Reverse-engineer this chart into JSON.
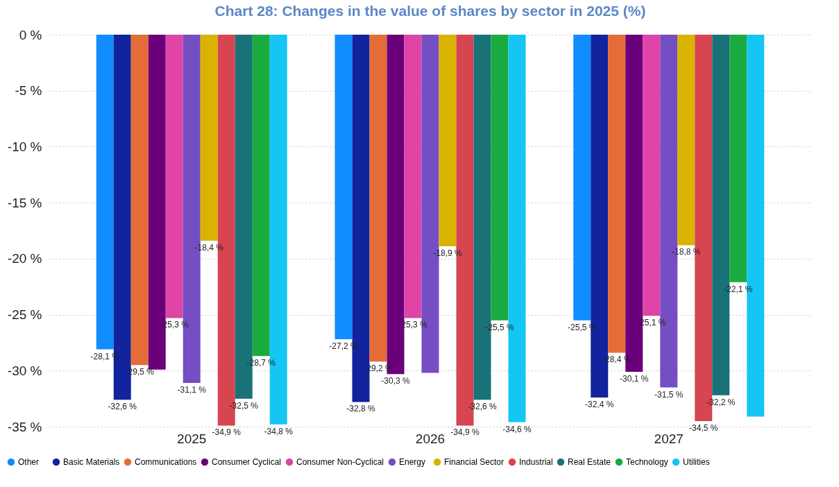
{
  "chart_data": {
    "type": "bar",
    "title": "Chart 28: Changes in the value of shares by sector in 2025 (%)",
    "categories": [
      "2025",
      "2026",
      "2027"
    ],
    "series": [
      {
        "name": "Other",
        "color": "#118dff",
        "values": [
          -28.1,
          -27.2,
          -25.5
        ],
        "value_labels": [
          "-28,1 %",
          "-27,2 %",
          "-25,5 %"
        ]
      },
      {
        "name": "Basic Materials",
        "color": "#12239e",
        "values": [
          -32.6,
          -32.8,
          -32.4
        ],
        "value_labels": [
          "-32,6 %",
          "-32,8 %",
          "-32,4 %"
        ]
      },
      {
        "name": "Communications",
        "color": "#e66c37",
        "values": [
          -29.5,
          -29.2,
          -28.4
        ],
        "value_labels": [
          "-29,5 %",
          "-29,2 %",
          "-28,4 %"
        ]
      },
      {
        "name": "Consumer Cyclical",
        "color": "#6b007b",
        "values": [
          -29.9,
          -30.3,
          -30.1
        ],
        "value_labels": [
          null,
          "-30,3 %",
          "-30,1 %"
        ]
      },
      {
        "name": "Consumer Non-Cyclical",
        "color": "#e044a7",
        "values": [
          -25.3,
          -25.3,
          -25.1
        ],
        "value_labels": [
          "-25,3 %",
          "-25,3 %",
          "-25,1 %"
        ]
      },
      {
        "name": "Energy",
        "color": "#744ec2",
        "values": [
          -31.1,
          -30.2,
          -31.5
        ],
        "value_labels": [
          "-31,1 %",
          null,
          "-31,5 %"
        ]
      },
      {
        "name": "Financial Sector",
        "color": "#d9b300",
        "values": [
          -18.4,
          -18.9,
          -18.8
        ],
        "value_labels": [
          "-18,4 %",
          "-18,9 %",
          "-18,8 %"
        ]
      },
      {
        "name": "Industrial",
        "color": "#d64550",
        "values": [
          -34.9,
          -34.9,
          -34.5
        ],
        "value_labels": [
          "-34,9 %",
          "-34,9 %",
          "-34,5 %"
        ]
      },
      {
        "name": "Real Estate",
        "color": "#197278",
        "values": [
          -32.5,
          -32.6,
          -32.2
        ],
        "value_labels": [
          "-32,5 %",
          "-32,6 %",
          "-32,2 %"
        ]
      },
      {
        "name": "Technology",
        "color": "#1aab40",
        "values": [
          -28.7,
          -25.5,
          -22.1
        ],
        "value_labels": [
          "-28,7 %",
          "-25,5 %",
          "-22,1 %"
        ]
      },
      {
        "name": "Utilities",
        "color": "#15c6f4",
        "values": [
          -34.8,
          -34.6,
          -34.1
        ],
        "value_labels": [
          "-34,8 %",
          "-34,6 %",
          null
        ]
      }
    ],
    "ylim": [
      -35,
      0
    ],
    "yticks": [
      {
        "value": 0,
        "label": "0 %"
      },
      {
        "value": -5,
        "label": "-5 %"
      },
      {
        "value": -10,
        "label": "-10 %"
      },
      {
        "value": -15,
        "label": "-15 %"
      },
      {
        "value": -20,
        "label": "-20 %"
      },
      {
        "value": -25,
        "label": "-25 %"
      },
      {
        "value": -30,
        "label": "-30 %"
      },
      {
        "value": -35,
        "label": "-35 %"
      }
    ],
    "grid": "y",
    "legend": "bottom"
  }
}
